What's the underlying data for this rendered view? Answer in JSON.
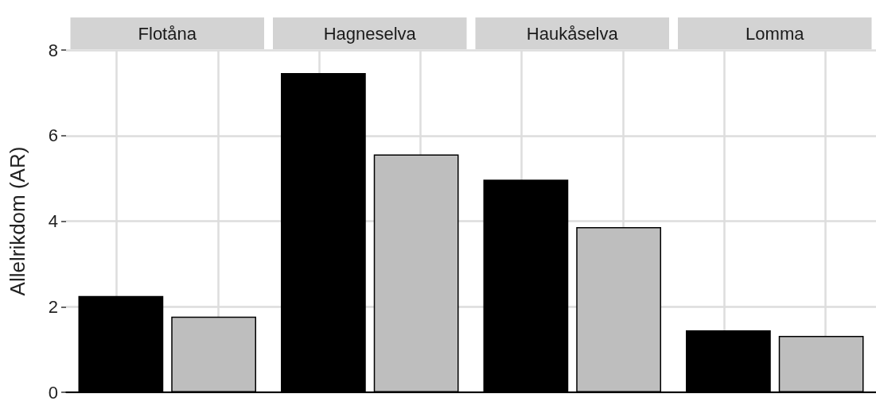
{
  "chart_data": {
    "type": "bar",
    "ylabel": "Allelrikdom (AR)",
    "categories": [
      "Flotåna",
      "Hagneselva",
      "Haukåselva",
      "Lomma"
    ],
    "series": [
      {
        "color": "#000000",
        "values": [
          2.25,
          7.46,
          4.97,
          1.45
        ]
      },
      {
        "color": "#bebebe",
        "values": [
          1.77,
          5.56,
          3.86,
          1.32
        ]
      }
    ],
    "ylim": [
      0,
      8
    ],
    "yticks": [
      0,
      2,
      4,
      6,
      8
    ],
    "grid": true
  }
}
